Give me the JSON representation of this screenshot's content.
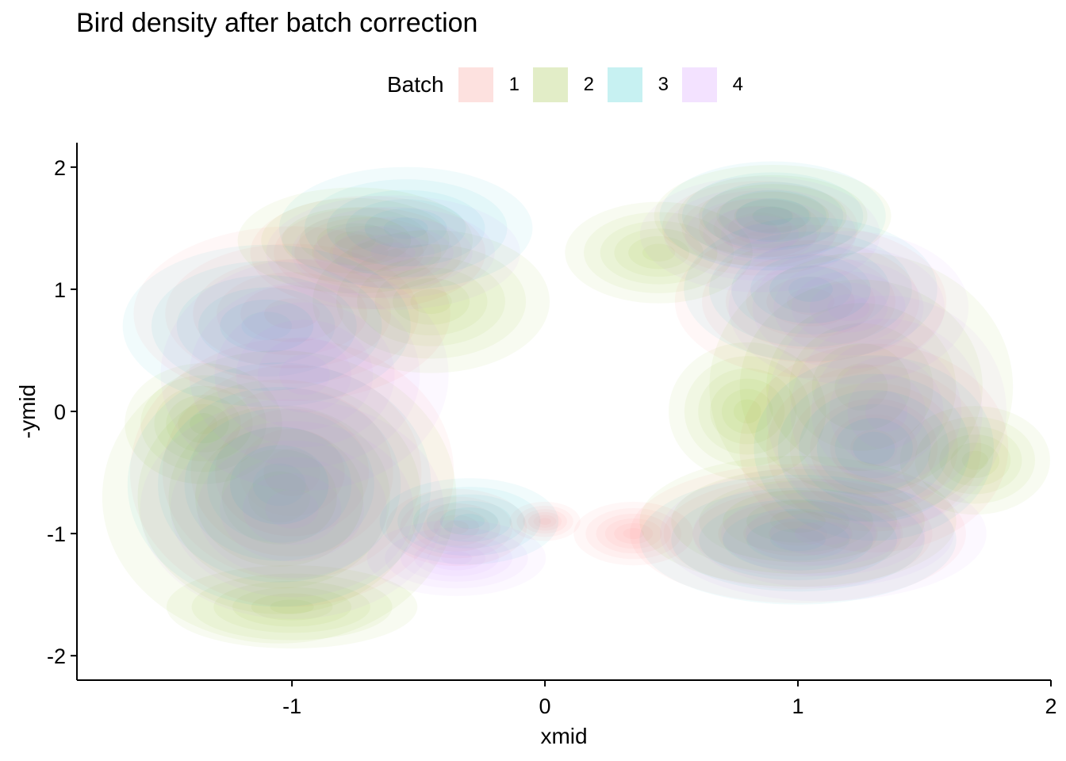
{
  "chart_data": {
    "type": "density-2d",
    "title": "Bird density after batch correction",
    "xlabel": "xmid",
    "ylabel": "-ymid",
    "xlim": [
      -1.85,
      2.0
    ],
    "ylim": [
      -2.2,
      2.2
    ],
    "x_ticks": [
      -1,
      0,
      1,
      2
    ],
    "x_tick_labels": [
      "-1",
      "0",
      "1",
      "2"
    ],
    "y_ticks": [
      -2,
      -1,
      0,
      1,
      2
    ],
    "y_tick_labels": [
      "-2",
      "-1",
      "0",
      "1",
      "2"
    ],
    "grid": false,
    "legend": {
      "title": "Batch",
      "position": "top",
      "entries": [
        {
          "label": "1",
          "color": "#F8766D"
        },
        {
          "label": "2",
          "color": "#7CAE00"
        },
        {
          "label": "3",
          "color": "#00BFC4"
        },
        {
          "label": "4",
          "color": "#C77CFF"
        }
      ]
    },
    "series": [
      {
        "name": "1",
        "color": "#F8766D",
        "density_peaks": [
          {
            "x": -1.0,
            "y": -0.5,
            "sx": 0.32,
            "sy": 0.55,
            "w": 1.0
          },
          {
            "x": -1.0,
            "y": 0.8,
            "sx": 0.35,
            "sy": 0.4,
            "w": 0.8
          },
          {
            "x": -0.7,
            "y": 1.3,
            "sx": 0.3,
            "sy": 0.3,
            "w": 0.6
          },
          {
            "x": -0.35,
            "y": -0.95,
            "sx": 0.22,
            "sy": 0.25,
            "w": 0.4
          },
          {
            "x": 0.0,
            "y": -0.9,
            "sx": 0.14,
            "sy": 0.16,
            "w": 0.25
          },
          {
            "x": 0.35,
            "y": -1.0,
            "sx": 0.2,
            "sy": 0.22,
            "w": 0.35
          },
          {
            "x": 1.0,
            "y": -1.0,
            "sx": 0.35,
            "sy": 0.3,
            "w": 0.9
          },
          {
            "x": 1.3,
            "y": -0.3,
            "sx": 0.28,
            "sy": 0.45,
            "w": 0.9
          },
          {
            "x": 1.05,
            "y": 0.9,
            "sx": 0.3,
            "sy": 0.35,
            "w": 0.8
          },
          {
            "x": 0.85,
            "y": 1.5,
            "sx": 0.25,
            "sy": 0.25,
            "w": 0.6
          }
        ]
      },
      {
        "name": "2",
        "color": "#7CAE00",
        "density_peaks": [
          {
            "x": -1.05,
            "y": -0.7,
            "sx": 0.35,
            "sy": 0.6,
            "w": 1.0
          },
          {
            "x": -1.35,
            "y": -0.1,
            "sx": 0.22,
            "sy": 0.35,
            "w": 0.5
          },
          {
            "x": -1.0,
            "y": -1.6,
            "sx": 0.32,
            "sy": 0.22,
            "w": 0.6
          },
          {
            "x": -0.45,
            "y": 0.9,
            "sx": 0.28,
            "sy": 0.35,
            "w": 0.7
          },
          {
            "x": -0.75,
            "y": 1.4,
            "sx": 0.3,
            "sy": 0.28,
            "w": 0.6
          },
          {
            "x": 0.45,
            "y": 1.3,
            "sx": 0.25,
            "sy": 0.28,
            "w": 0.55
          },
          {
            "x": 0.9,
            "y": 1.6,
            "sx": 0.28,
            "sy": 0.25,
            "w": 0.7
          },
          {
            "x": 1.25,
            "y": 0.2,
            "sx": 0.3,
            "sy": 0.55,
            "w": 1.0
          },
          {
            "x": 1.7,
            "y": -0.4,
            "sx": 0.2,
            "sy": 0.3,
            "w": 0.55
          },
          {
            "x": 1.0,
            "y": -0.9,
            "sx": 0.35,
            "sy": 0.3,
            "w": 0.8
          },
          {
            "x": 0.8,
            "y": 0.0,
            "sx": 0.22,
            "sy": 0.4,
            "w": 0.5
          }
        ]
      },
      {
        "name": "3",
        "color": "#00BFC4",
        "density_peaks": [
          {
            "x": -1.05,
            "y": -0.6,
            "sx": 0.3,
            "sy": 0.5,
            "w": 1.0
          },
          {
            "x": -1.1,
            "y": 0.7,
            "sx": 0.3,
            "sy": 0.35,
            "w": 0.9
          },
          {
            "x": -0.55,
            "y": 1.5,
            "sx": 0.28,
            "sy": 0.28,
            "w": 0.8
          },
          {
            "x": -0.3,
            "y": -0.9,
            "sx": 0.25,
            "sy": 0.25,
            "w": 0.5
          },
          {
            "x": 1.0,
            "y": -1.05,
            "sx": 0.33,
            "sy": 0.28,
            "w": 0.9
          },
          {
            "x": 1.3,
            "y": -0.3,
            "sx": 0.25,
            "sy": 0.4,
            "w": 0.9
          },
          {
            "x": 1.05,
            "y": 1.0,
            "sx": 0.28,
            "sy": 0.33,
            "w": 0.8
          },
          {
            "x": 0.9,
            "y": 1.6,
            "sx": 0.25,
            "sy": 0.25,
            "w": 0.8
          }
        ]
      },
      {
        "name": "4",
        "color": "#C77CFF",
        "density_peaks": [
          {
            "x": -1.0,
            "y": -0.8,
            "sx": 0.3,
            "sy": 0.45,
            "w": 1.0
          },
          {
            "x": -0.95,
            "y": 0.3,
            "sx": 0.3,
            "sy": 0.5,
            "w": 0.9
          },
          {
            "x": -0.6,
            "y": 1.3,
            "sx": 0.3,
            "sy": 0.28,
            "w": 0.7
          },
          {
            "x": -0.35,
            "y": -1.2,
            "sx": 0.25,
            "sy": 0.22,
            "w": 0.5
          },
          {
            "x": 1.1,
            "y": -1.0,
            "sx": 0.35,
            "sy": 0.3,
            "w": 0.85
          },
          {
            "x": 1.35,
            "y": 0.0,
            "sx": 0.25,
            "sy": 0.5,
            "w": 0.9
          },
          {
            "x": 1.2,
            "y": 0.85,
            "sx": 0.25,
            "sy": 0.33,
            "w": 0.9
          },
          {
            "x": 0.85,
            "y": 1.45,
            "sx": 0.25,
            "sy": 0.25,
            "w": 0.9
          }
        ]
      }
    ]
  }
}
